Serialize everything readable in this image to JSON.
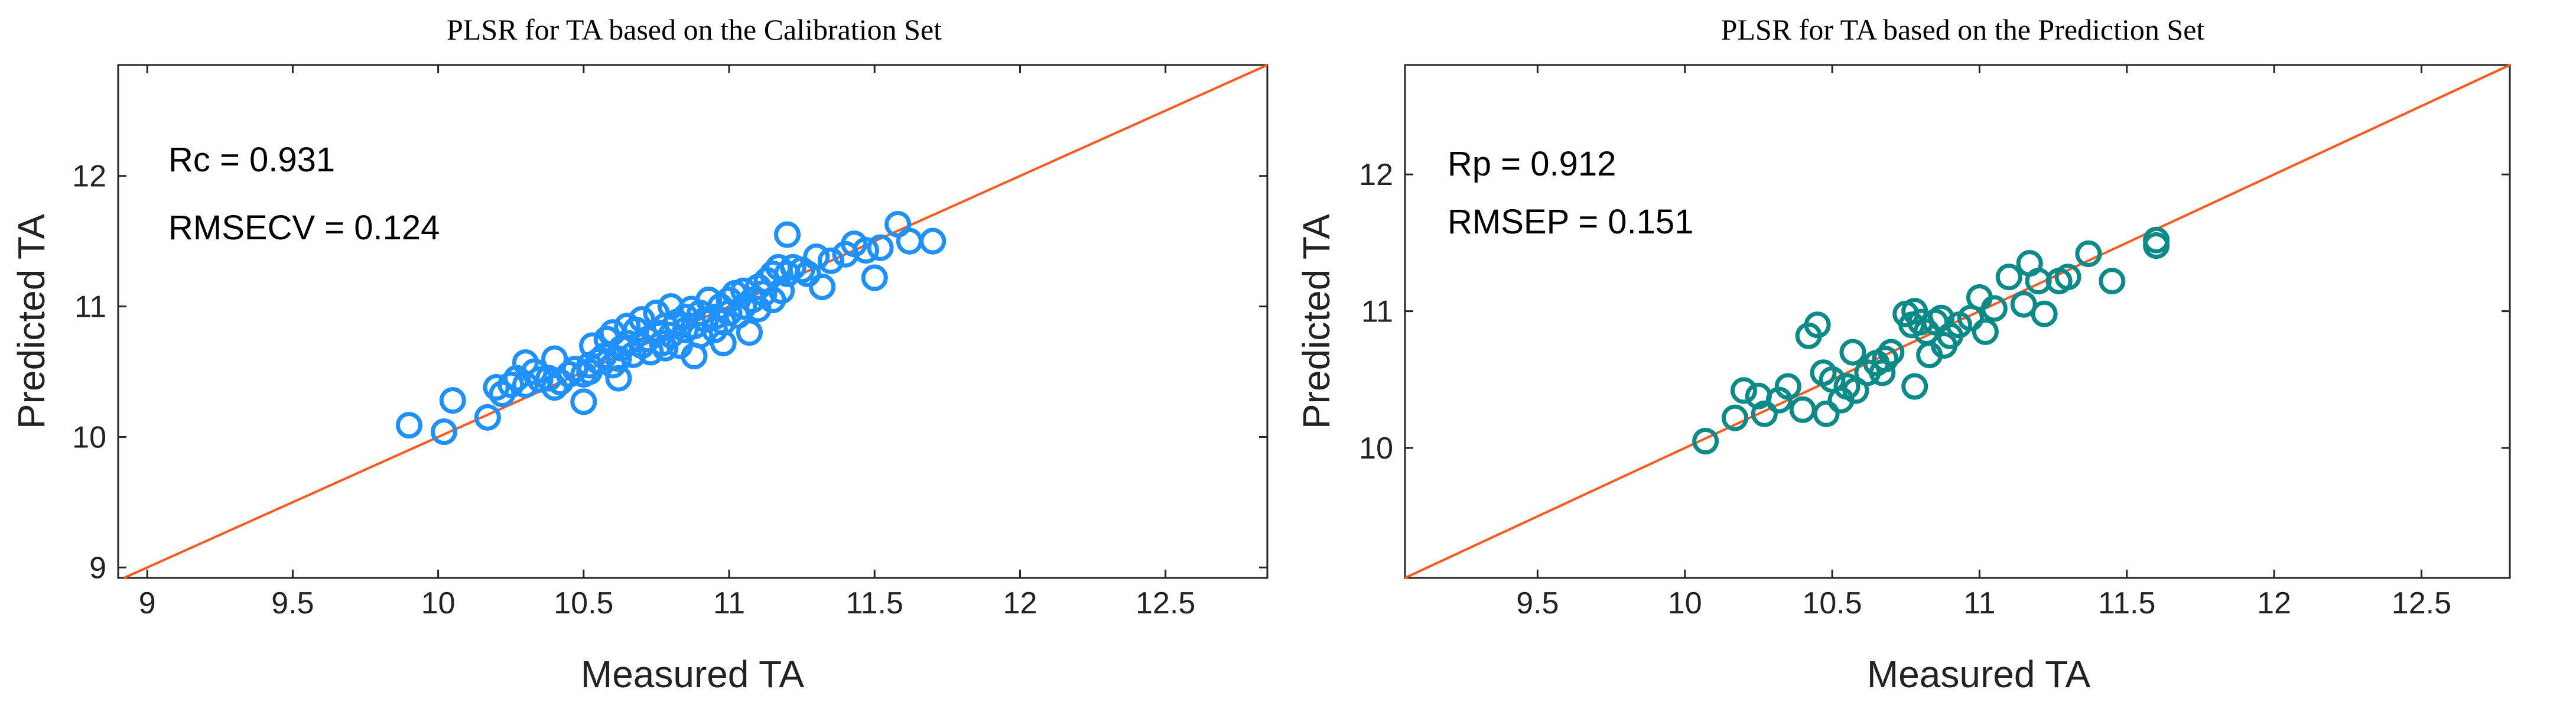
{
  "chart_data": [
    {
      "type": "scatter",
      "title": "PLSR for TA based on the Calibration Set",
      "xlabel": "Measured TA",
      "ylabel": "Predicted TA",
      "xlim": [
        8.9,
        12.85
      ],
      "ylim": [
        8.92,
        12.85
      ],
      "xticks": [
        9,
        9.5,
        10,
        10.5,
        11,
        11.5,
        12,
        12.5
      ],
      "xtick_labels": [
        "9",
        "9.5",
        "10",
        "10.5",
        "11",
        "11.5",
        "12",
        "12.5"
      ],
      "yticks": [
        9,
        10,
        11,
        12
      ],
      "ytick_labels": [
        "9",
        "10",
        "11",
        "12"
      ],
      "grid": false,
      "annotations": [
        "Rc = 0.931",
        "RMSECV = 0.124"
      ],
      "reference_line": {
        "type": "y=x",
        "color": "#ff5a1f"
      },
      "marker_color": "#1e90ff",
      "series": [
        {
          "x": [
            9.9,
            10.02,
            10.05,
            10.17,
            10.2,
            10.22,
            10.25,
            10.27,
            10.3,
            10.3,
            10.33,
            10.35,
            10.38,
            10.4,
            10.4,
            10.42,
            10.45,
            10.47,
            10.5,
            10.5,
            10.52,
            10.53,
            10.55,
            10.57,
            10.58,
            10.6,
            10.6,
            10.62,
            10.63,
            10.65,
            10.65,
            10.67,
            10.68,
            10.7,
            10.7,
            10.72,
            10.73,
            10.75,
            10.75,
            10.77,
            10.78,
            10.8,
            10.8,
            10.82,
            10.83,
            10.85,
            10.85,
            10.87,
            10.88,
            10.9,
            10.9,
            10.92,
            10.93,
            10.95,
            10.95,
            10.97,
            10.98,
            11.0,
            11.0,
            11.02,
            11.03,
            11.05,
            11.05,
            11.07,
            11.08,
            11.1,
            11.1,
            11.12,
            11.13,
            11.15,
            11.15,
            11.17,
            11.18,
            11.2,
            11.2,
            11.22,
            11.25,
            11.27,
            11.3,
            11.32,
            11.35,
            11.4,
            11.43,
            11.47,
            11.5,
            11.52,
            11.58,
            11.62,
            11.7,
            10.52,
            10.62,
            10.78,
            10.88,
            10.98
          ],
          "y": [
            10.09,
            10.04,
            10.28,
            10.15,
            10.38,
            10.33,
            10.4,
            10.45,
            10.4,
            10.57,
            10.5,
            10.44,
            10.45,
            10.6,
            10.38,
            10.42,
            10.48,
            10.52,
            10.27,
            10.48,
            10.55,
            10.7,
            10.58,
            10.62,
            10.75,
            10.55,
            10.8,
            10.6,
            10.68,
            10.72,
            10.85,
            10.63,
            10.82,
            10.7,
            10.9,
            10.75,
            10.65,
            10.8,
            10.95,
            10.72,
            10.85,
            10.78,
            11.0,
            10.88,
            10.7,
            10.92,
            10.82,
            10.98,
            10.85,
            10.95,
            10.78,
            10.9,
            11.05,
            10.92,
            10.82,
            11.0,
            10.88,
            11.05,
            10.95,
            11.1,
            10.93,
            11.0,
            11.12,
            10.8,
            11.05,
            11.15,
            10.98,
            11.1,
            11.2,
            11.25,
            11.05,
            11.3,
            11.12,
            11.25,
            11.55,
            11.3,
            11.28,
            11.25,
            11.38,
            11.15,
            11.35,
            11.4,
            11.48,
            11.43,
            11.22,
            11.45,
            11.63,
            11.5,
            11.5,
            10.5,
            10.45,
            10.68,
            10.62,
            10.72
          ]
        }
      ]
    },
    {
      "type": "scatter",
      "title": "PLSR for TA based on the Prediction Set",
      "xlabel": "Measured TA",
      "ylabel": "Predicted TA",
      "xlim": [
        9.05,
        12.8
      ],
      "ylim": [
        9.05,
        12.8
      ],
      "xticks": [
        9.5,
        10,
        10.5,
        11,
        11.5,
        12,
        12.5
      ],
      "xtick_labels": [
        "9.5",
        "10",
        "10.5",
        "11",
        "11.5",
        "12",
        "12.5"
      ],
      "yticks": [
        10,
        11,
        12
      ],
      "ytick_labels": [
        "10",
        "11",
        "12"
      ],
      "grid": false,
      "annotations": [
        "Rp = 0.912",
        "RMSEP = 0.151"
      ],
      "reference_line": {
        "type": "y=x",
        "color": "#ff5a1f"
      },
      "marker_color": "#0b8a87",
      "series": [
        {
          "x": [
            10.07,
            10.17,
            10.2,
            10.25,
            10.27,
            10.32,
            10.35,
            10.4,
            10.42,
            10.47,
            10.48,
            10.5,
            10.53,
            10.55,
            10.57,
            10.58,
            10.62,
            10.65,
            10.67,
            10.68,
            10.7,
            10.75,
            10.77,
            10.78,
            10.8,
            10.82,
            10.83,
            10.85,
            10.87,
            10.88,
            10.9,
            10.93,
            10.97,
            11.0,
            11.02,
            11.05,
            11.1,
            11.15,
            11.17,
            11.2,
            11.22,
            11.27,
            11.3,
            11.37,
            11.45,
            11.6,
            11.6,
            10.45,
            10.78
          ],
          "y": [
            10.05,
            10.22,
            10.42,
            10.38,
            10.25,
            10.35,
            10.45,
            10.28,
            10.82,
            10.55,
            10.25,
            10.5,
            10.35,
            10.45,
            10.7,
            10.42,
            10.55,
            10.62,
            10.55,
            10.65,
            10.7,
            10.98,
            10.9,
            10.45,
            10.92,
            10.85,
            10.68,
            10.92,
            10.95,
            10.75,
            10.82,
            10.9,
            10.95,
            11.1,
            10.85,
            11.02,
            11.25,
            11.05,
            11.35,
            11.22,
            10.98,
            11.22,
            11.25,
            11.42,
            11.22,
            11.52,
            11.48,
            10.9,
            11.0
          ]
        }
      ]
    }
  ]
}
